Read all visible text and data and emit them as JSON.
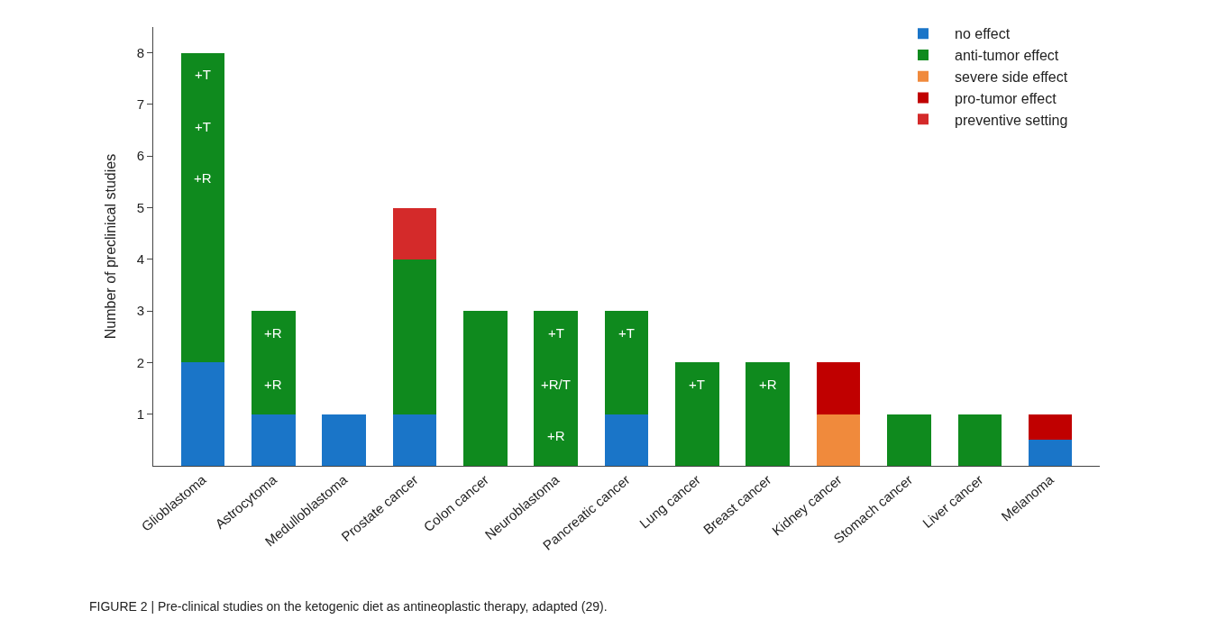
{
  "chart_data": {
    "type": "bar",
    "stacked": true,
    "ylabel": "Number of preclinical studies",
    "categories": [
      "Glioblastoma",
      "Astrocytoma",
      "Medulloblastoma",
      "Prostate cancer",
      "Colon cancer",
      "Neuroblastoma",
      "Pancreatic cancer",
      "Lung cancer",
      "Breast cancer",
      "Kidney cancer",
      "Stomach cancer",
      "Liver cancer",
      "Melanoma"
    ],
    "series": [
      {
        "name": "no effect",
        "color": "#1a75c8",
        "values": [
          2,
          1,
          1,
          1,
          null,
          null,
          1,
          null,
          null,
          null,
          null,
          null,
          0.5
        ]
      },
      {
        "name": "anti-tumor effect",
        "color": "#0f8a1e",
        "values": [
          6,
          2,
          null,
          3,
          3,
          3,
          2,
          2,
          2,
          null,
          1,
          1,
          null
        ],
        "value_labels": [
          "+T\n+T\n+R",
          "+R\n+R",
          null,
          null,
          null,
          "+T\n+R/T\n+R",
          "+T",
          "+T",
          "+R",
          null,
          null,
          null,
          null
        ]
      },
      {
        "name": "severe side effect",
        "color": "#f08a3c",
        "values": [
          null,
          null,
          null,
          null,
          null,
          null,
          null,
          null,
          null,
          1,
          null,
          null,
          null
        ]
      },
      {
        "name": "pro-tumor effect",
        "color": "#c00000",
        "values": [
          null,
          null,
          null,
          null,
          null,
          null,
          null,
          null,
          null,
          1,
          null,
          null,
          0.5
        ]
      },
      {
        "name": "preventive setting",
        "color": "#d42a2a",
        "values": [
          null,
          null,
          null,
          1,
          null,
          null,
          null,
          null,
          null,
          null,
          null,
          null,
          null
        ]
      }
    ],
    "ylim": [
      0,
      8.5
    ],
    "yticks": [
      1,
      2,
      3,
      4,
      5,
      6,
      7,
      8
    ],
    "grid": false,
    "legend": "top right",
    "annotations": [
      "FIGURE 2 | Pre-clinical studies on the ketogenic diet as antineoplastic therapy, adapted (29)."
    ]
  }
}
